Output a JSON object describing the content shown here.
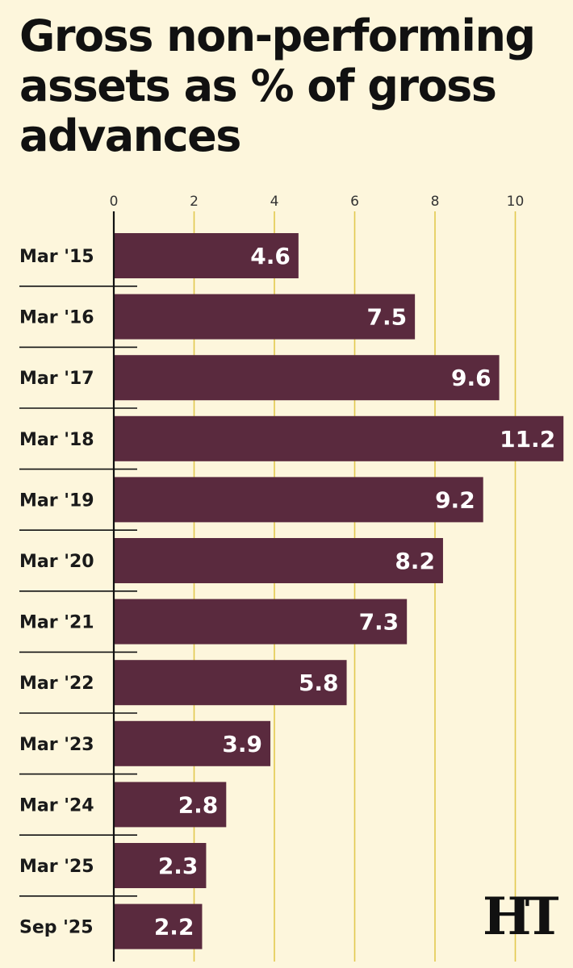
{
  "title": "Gross non-performing assets as % of gross advances",
  "logo": "HT",
  "colors": {
    "background": "#fdf6dc",
    "bar": "#5a2a3e",
    "gridline": "#e2c94e",
    "axis": "#111111",
    "value_text": "#ffffff"
  },
  "chart_data": {
    "type": "bar",
    "orientation": "horizontal",
    "title": "Gross non-performing assets as % of gross advances",
    "xlabel": "",
    "ylabel": "",
    "xlim": [
      0,
      11.2
    ],
    "xticks": [
      0,
      2,
      4,
      6,
      8,
      10
    ],
    "axis_position": "top",
    "grid": true,
    "categories": [
      "Mar '15",
      "Mar '16",
      "Mar '17",
      "Mar '18",
      "Mar '19",
      "Mar '20",
      "Mar '21",
      "Mar '22",
      "Mar '23",
      "Mar '24",
      "Mar '25",
      "Sep '25"
    ],
    "values": [
      4.6,
      7.5,
      9.6,
      11.2,
      9.2,
      8.2,
      7.3,
      5.8,
      3.9,
      2.8,
      2.3,
      2.2
    ],
    "value_labels": [
      "4.6",
      "7.5",
      "9.6",
      "11.2",
      "9.2",
      "8.2",
      "7.3",
      "5.8",
      "3.9",
      "2.8",
      "2.3",
      "2.2"
    ]
  }
}
